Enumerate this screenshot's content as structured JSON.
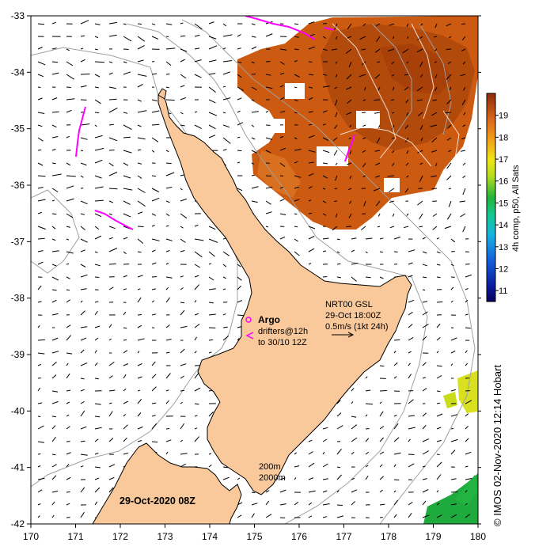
{
  "map": {
    "x_ticks": [
      "170",
      "171",
      "172",
      "173",
      "174",
      "175",
      "176",
      "177",
      "178",
      "179",
      "180"
    ],
    "y_ticks": [
      "-33",
      "-34",
      "-35",
      "-36",
      "-37",
      "-38",
      "-39",
      "-40",
      "-41",
      "-42"
    ],
    "date_label": "29-Oct-2020 08Z",
    "argo_title": "Argo",
    "argo_line1": "drifters@12h",
    "argo_line2": "to 30/10 12Z",
    "current_line1": "NRT00 GSL",
    "current_line2": "29-Oct 18:00Z",
    "current_line3": "0.5m/s (1kt 24h)",
    "depth_200": "200m",
    "depth_2000": "2000m",
    "credit": "©  IMOS 02-Nov-2020 12:14 Hobart"
  },
  "colorbar": {
    "ticks": [
      "19",
      "18",
      "17",
      "16",
      "15",
      "14",
      "13",
      "12",
      "11"
    ],
    "label": "4h comp, p50, All Sats",
    "range": [
      10.5,
      20
    ]
  },
  "colors": {
    "land": "#f9c99b",
    "coast": "#000000",
    "isobath": "#a0a0a0",
    "argo": "#ff00ff",
    "sst_warm": "#cc5500"
  }
}
